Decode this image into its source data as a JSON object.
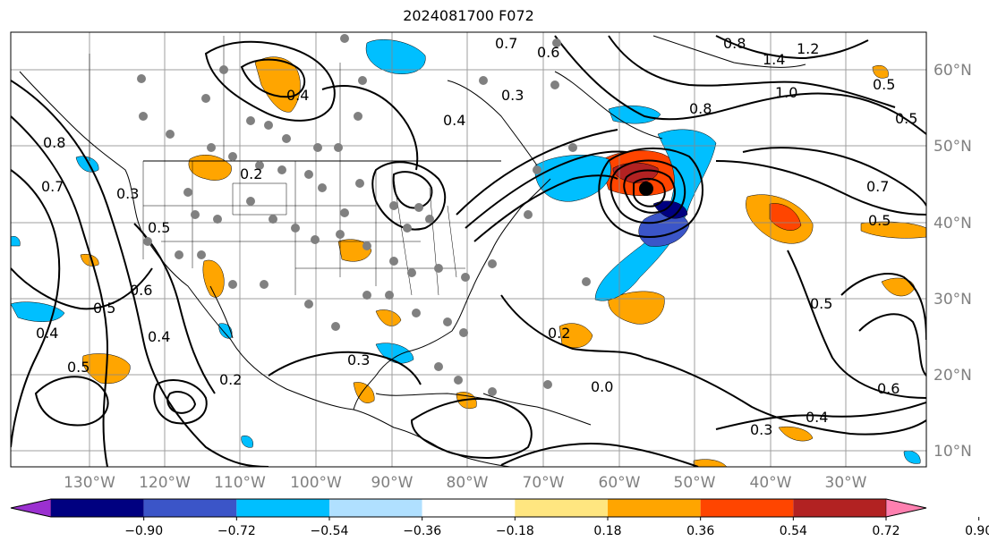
{
  "title": "2024081700 F072",
  "lon_labels": [
    "130°W",
    "120°W",
    "110°W",
    "100°W",
    "90°W",
    "80°W",
    "70°W",
    "60°W",
    "50°W",
    "40°W",
    "30°W"
  ],
  "lat_labels": [
    "60°N",
    "50°N",
    "40°N",
    "30°N",
    "20°N",
    "10°N"
  ],
  "colorbar": {
    "ticks": [
      "−0.90",
      "−0.72",
      "−0.54",
      "−0.36",
      "−0.18",
      "0.18",
      "0.36",
      "0.54",
      "0.72",
      "0.90"
    ],
    "colors": [
      "#9b30d0",
      "#000080",
      "#3b55c8",
      "#00bfff",
      "#b0e0ff",
      "#ffffff",
      "#ffe680",
      "#ffa500",
      "#ff4500",
      "#b22222",
      "#ff80b0"
    ]
  },
  "contour_labels": [
    "0.7",
    "0.6",
    "0.8",
    "1.4",
    "1.2",
    "0.4",
    "0.3",
    "0.5",
    "0.4",
    "0.5",
    "1.0",
    "0.8",
    "0.5",
    "0.2",
    "0.8",
    "0.7",
    "0.7",
    "0.3",
    "0.5",
    "0.6",
    "0.5",
    "0.4",
    "0.4",
    "0.2",
    "0.3",
    "0.2",
    "0.0",
    "0.4",
    "0.3",
    "0.6",
    "0.5",
    "0.5"
  ],
  "colors": {
    "positive_fill": "#ffa500",
    "negative_fill": "#00bfff",
    "station_dots": "#808080",
    "gridlines": "#888888"
  }
}
